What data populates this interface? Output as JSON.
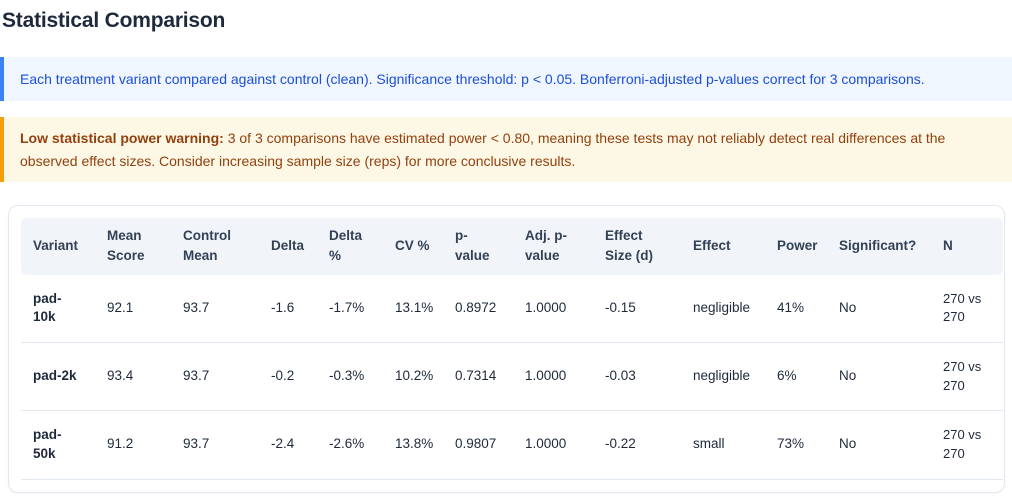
{
  "page": {
    "title": "Statistical Comparison"
  },
  "info_banner": {
    "text": "Each treatment variant compared against control (clean). Significance threshold: p < 0.05. Bonferroni-adjusted p-values correct for 3 comparisons."
  },
  "warning_banner": {
    "bold": "Low statistical power warning:",
    "text": " 3 of 3 comparisons have estimated power < 0.80, meaning these tests may not reliably detect real differences at the observed effect sizes. Consider increasing sample size (reps) for more conclusive results."
  },
  "colors": {
    "info_accent": "#3b82f6",
    "info_text": "#1d4ed8",
    "info_bg": "#eff6ff",
    "warning_accent": "#f59e0b",
    "warning_text": "#92400e",
    "warning_bg": "#fdf8e6",
    "negative_value": "#dc2626",
    "muted_value": "#94a3b8",
    "sample_size_text": "#64748b",
    "header_bg": "#f1f5f9",
    "card_border": "#e2e8f0"
  },
  "table": {
    "columns": [
      {
        "key": "variant",
        "label": "Variant",
        "width": 74,
        "cls": "c-variant",
        "nowrapHead": true,
        "nowrapCell": false
      },
      {
        "key": "mean_score",
        "label": "Mean Score",
        "width": 76,
        "cls": "",
        "nowrapHead": false,
        "nowrapCell": true
      },
      {
        "key": "control_mean",
        "label": "Control Mean",
        "width": 88,
        "cls": "",
        "nowrapHead": false,
        "nowrapCell": true
      },
      {
        "key": "delta",
        "label": "Delta",
        "width": 58,
        "cls": "c-red",
        "nowrapHead": true,
        "nowrapCell": true
      },
      {
        "key": "delta_pct",
        "label": "Delta %",
        "width": 66,
        "cls": "c-red",
        "nowrapHead": false,
        "nowrapCell": true
      },
      {
        "key": "cv_pct",
        "label": "CV %",
        "width": 60,
        "cls": "",
        "nowrapHead": true,
        "nowrapCell": true
      },
      {
        "key": "p_value",
        "label": "p-value",
        "width": 70,
        "cls": "",
        "nowrapHead": false,
        "nowrapCell": true
      },
      {
        "key": "adj_p_value",
        "label": "Adj. p-value",
        "width": 80,
        "cls": "",
        "nowrapHead": false,
        "nowrapCell": true
      },
      {
        "key": "effect_size_d",
        "label": "Effect Size (d)",
        "width": 88,
        "cls": "",
        "nowrapHead": false,
        "nowrapCell": true
      },
      {
        "key": "effect",
        "label": "Effect",
        "width": 84,
        "cls": "",
        "nowrapHead": true,
        "nowrapCell": true
      },
      {
        "key": "power",
        "label": "Power",
        "width": 62,
        "cls": "c-red",
        "nowrapHead": true,
        "nowrapCell": true
      },
      {
        "key": "significant",
        "label": "Significant?",
        "width": 104,
        "cls": "c-muted",
        "nowrapHead": true,
        "nowrapCell": true
      },
      {
        "key": "n",
        "label": "N",
        "width": 72,
        "cls": "c-n",
        "nowrapHead": true,
        "nowrapCell": false
      }
    ],
    "rows": [
      {
        "variant": "pad-10k",
        "mean_score": "92.1",
        "control_mean": "93.7",
        "delta": "-1.6",
        "delta_pct": "-1.7%",
        "cv_pct": "13.1%",
        "p_value": "0.8972",
        "adj_p_value": "1.0000",
        "effect_size_d": "-0.15",
        "effect": "negligible",
        "power": "41%",
        "significant": "No",
        "n": "270 vs 270"
      },
      {
        "variant": "pad-2k",
        "mean_score": "93.4",
        "control_mean": "93.7",
        "delta": "-0.2",
        "delta_pct": "-0.3%",
        "cv_pct": "10.2%",
        "p_value": "0.7314",
        "adj_p_value": "1.0000",
        "effect_size_d": "-0.03",
        "effect": "negligible",
        "power": "6%",
        "significant": "No",
        "n": "270 vs 270"
      },
      {
        "variant": "pad-50k",
        "mean_score": "91.2",
        "control_mean": "93.7",
        "delta": "-2.4",
        "delta_pct": "-2.6%",
        "cv_pct": "13.8%",
        "p_value": "0.9807",
        "adj_p_value": "1.0000",
        "effect_size_d": "-0.22",
        "effect": "small",
        "power": "73%",
        "significant": "No",
        "n": "270 vs 270"
      }
    ]
  }
}
